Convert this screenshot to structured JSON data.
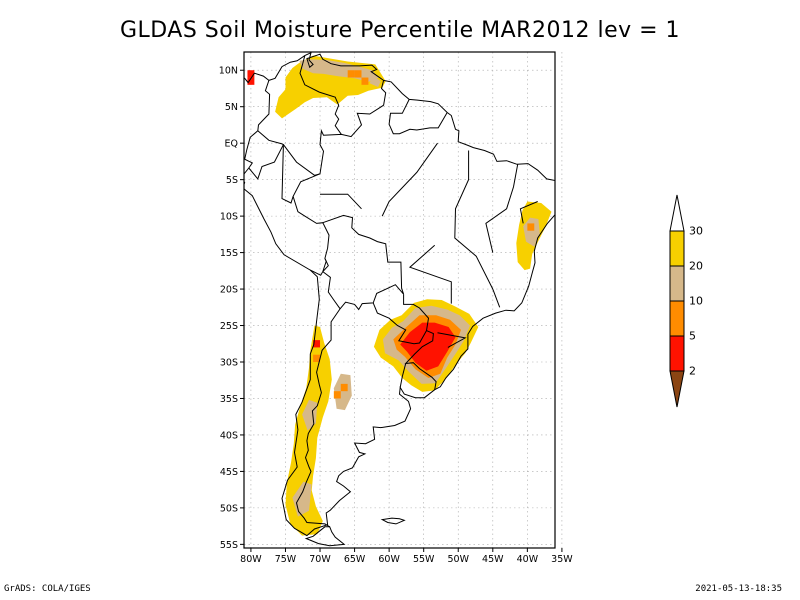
{
  "title": "GLDAS Soil Moisture Percentile MAR2012 lev = 1",
  "map": {
    "lat_labels": [
      "10N",
      "5N",
      "EQ",
      "5S",
      "10S",
      "15S",
      "20S",
      "25S",
      "30S",
      "35S",
      "40S",
      "45S",
      "50S",
      "55S"
    ],
    "lon_labels": [
      "80W",
      "75W",
      "70W",
      "65W",
      "60W",
      "55W",
      "50W",
      "45W",
      "40W",
      "35W"
    ],
    "lat_values": [
      10,
      5,
      0,
      -5,
      -10,
      -15,
      -20,
      -25,
      -30,
      -35,
      -40,
      -45,
      -50,
      -55
    ],
    "lon_values": [
      -80,
      -75,
      -70,
      -65,
      -60,
      -55,
      -50,
      -45,
      -40,
      -35
    ],
    "lon_range": [
      -81,
      -36
    ],
    "lat_range": [
      -55.5,
      12.5
    ]
  },
  "legend": {
    "labels": [
      "30",
      "20",
      "10",
      "5",
      "2"
    ],
    "colors": {
      "above": "#ffffff",
      "c20_30": "#f7d000",
      "c10_20": "#d6b88a",
      "c5_10": "#ff8c00",
      "c2_5": "#ff1200",
      "below": "#8b4513"
    }
  },
  "footer": {
    "left": "GrADS: COLA/IGES",
    "right": "2021-05-13-18:35"
  }
}
